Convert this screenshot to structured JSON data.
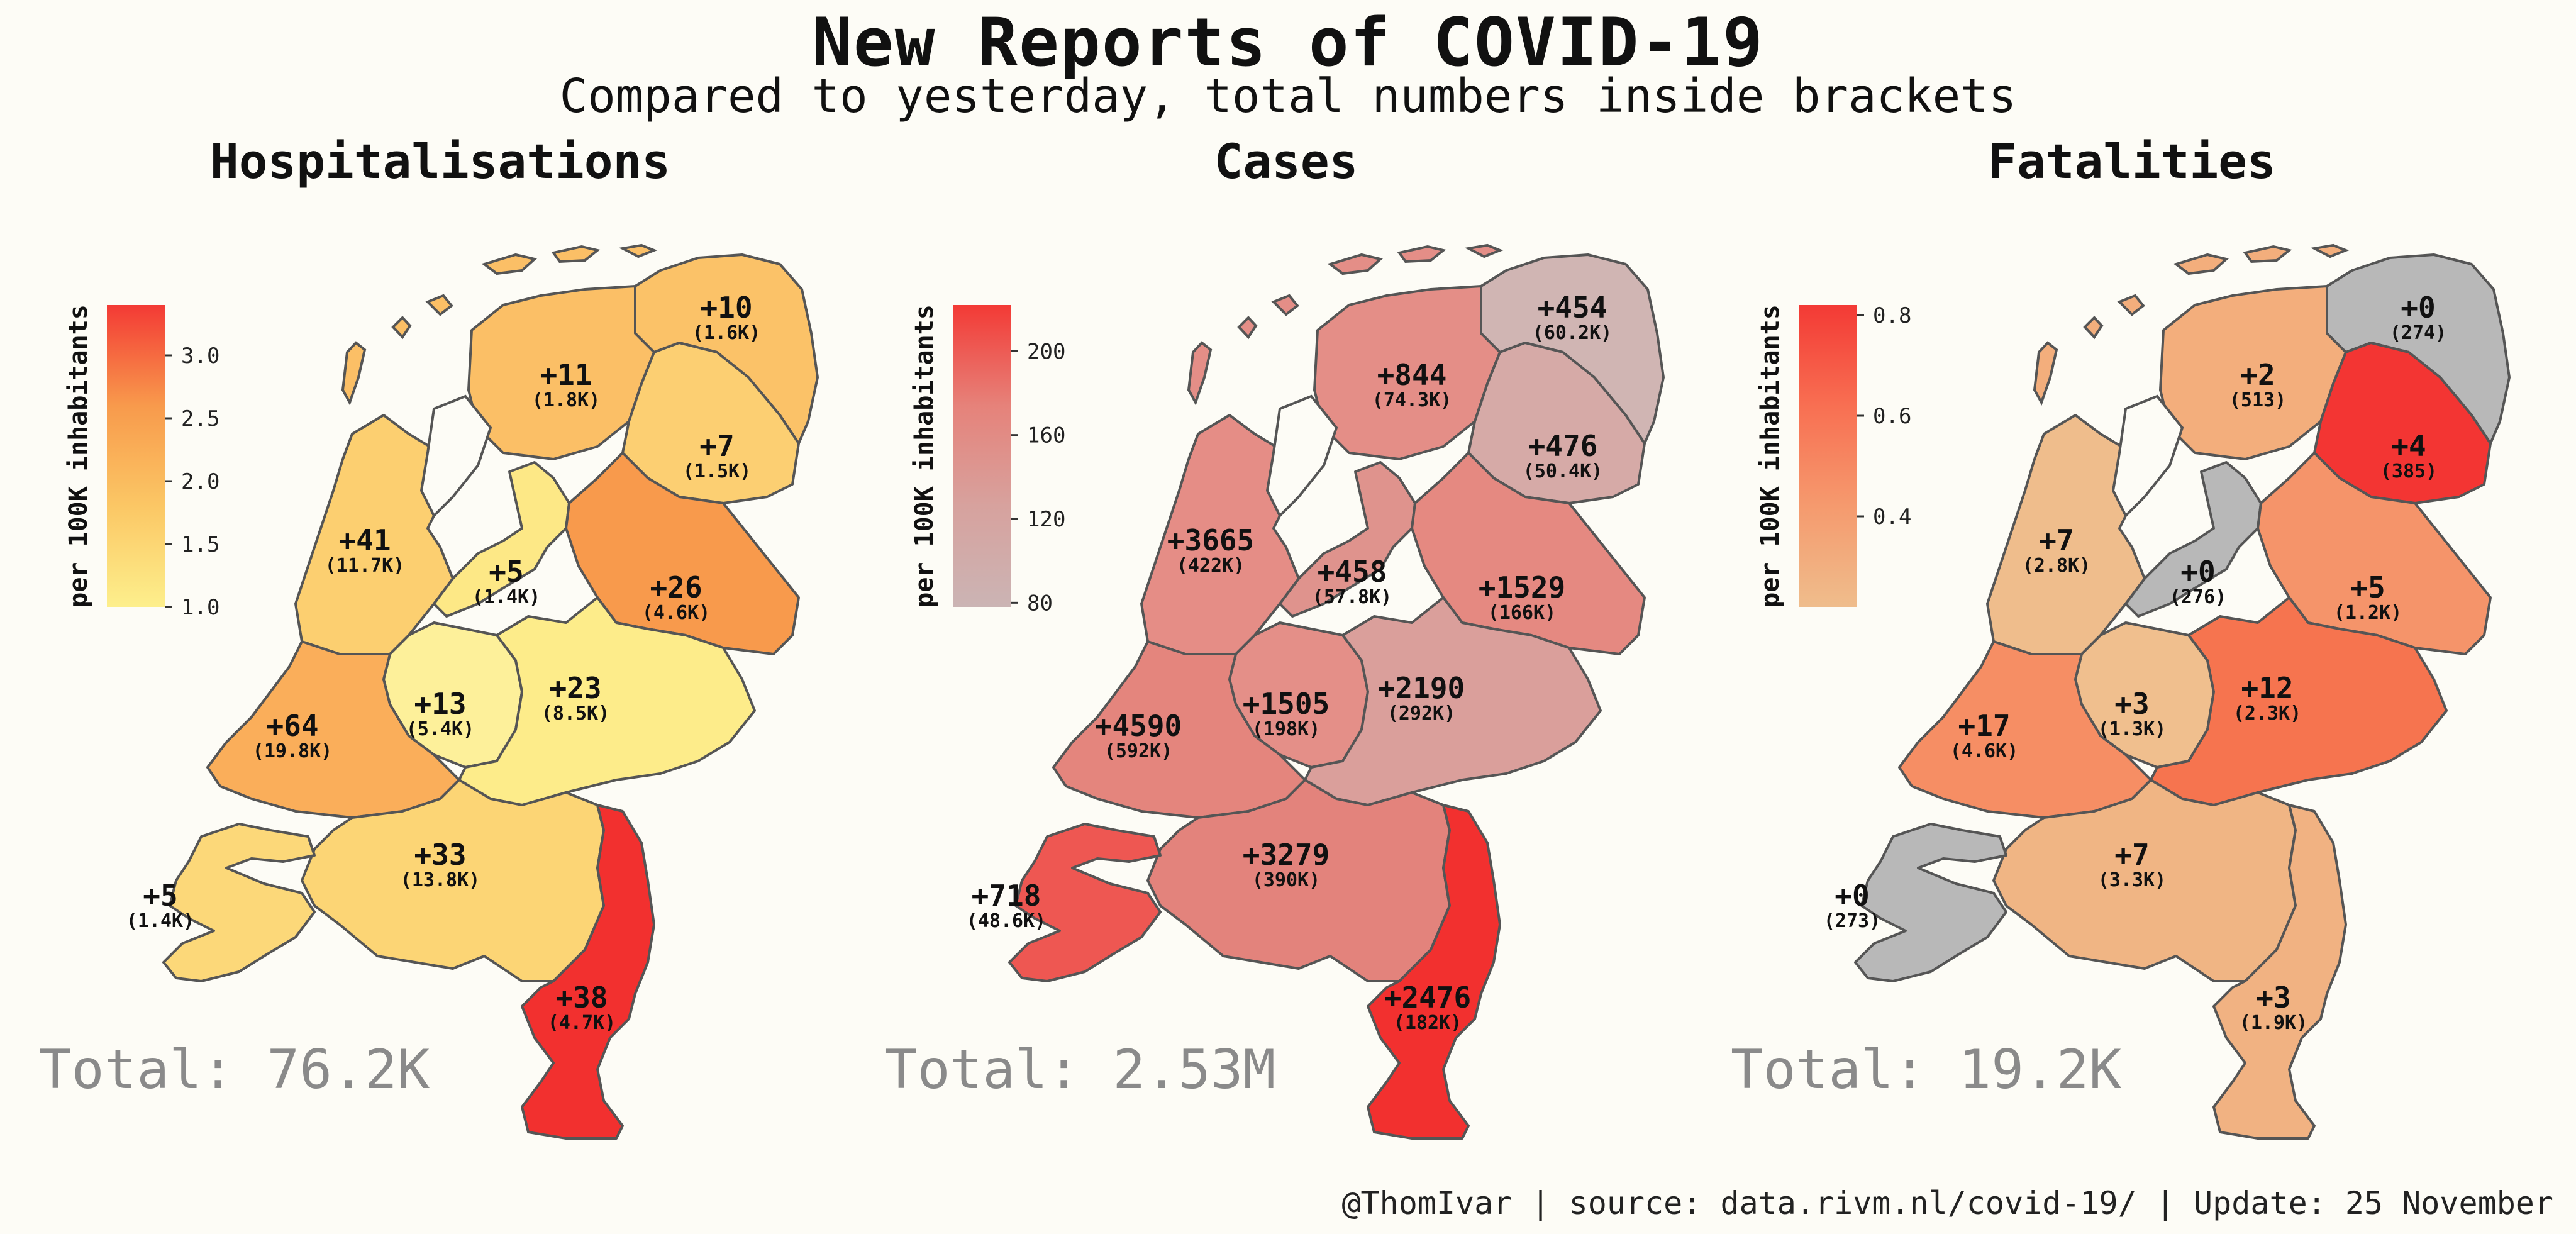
{
  "title": "New Reports of COVID-19",
  "subtitle": "Compared to yesterday, total numbers inside brackets",
  "footer": "@ThomIvar | source: data.rivm.nl/covid-19/ | Update: 25 November",
  "legend_label": "per 100K inhabitants",
  "colors": {
    "background": "#fdfcf6",
    "border": "#555555",
    "total_text": "#8a8a8a",
    "no_data": "#b8b8b8",
    "water": "#fdfcf6"
  },
  "panels": [
    {
      "title": "Hospitalisations",
      "total": "Total: 76.2K",
      "legend_ticks": [
        "3.0",
        "2.5",
        "2.0",
        "1.5",
        "1.0"
      ],
      "legend_range": [
        1.0,
        3.4
      ],
      "legend_tick_values": [
        3.0,
        2.5,
        2.0,
        1.5,
        1.0
      ],
      "legend_gradient": [
        "#fdef8c",
        "#fbc765",
        "#f89a4c",
        "#f33a35"
      ],
      "provinces": {
        "groningen": {
          "new": "+10",
          "total": "(1.6K)",
          "fill": "#fbc268"
        },
        "friesland": {
          "new": "+11",
          "total": "(1.8K)",
          "fill": "#fbbf66"
        },
        "drenthe": {
          "new": "+7",
          "total": "(1.5K)",
          "fill": "#fccf72"
        },
        "noord-holland": {
          "new": "+41",
          "total": "(11.7K)",
          "fill": "#fccf70"
        },
        "flevoland": {
          "new": "+5",
          "total": "(1.4K)",
          "fill": "#fde886"
        },
        "overijssel": {
          "new": "+26",
          "total": "(4.6K)",
          "fill": "#f89a4c"
        },
        "utrecht": {
          "new": "+13",
          "total": "(5.4K)",
          "fill": "#fdf09a"
        },
        "gelderland": {
          "new": "+23",
          "total": "(8.5K)",
          "fill": "#fdec8a"
        },
        "zuid-holland": {
          "new": "+64",
          "total": "(19.8K)",
          "fill": "#faae5a"
        },
        "noord-brabant": {
          "new": "+33",
          "total": "(13.8K)",
          "fill": "#fcd575"
        },
        "zeeland": {
          "new": "+5",
          "total": "(1.4K)",
          "fill": "#fcd879"
        },
        "limburg": {
          "new": "+38",
          "total": "(4.7K)",
          "fill": "#f2302f"
        }
      }
    },
    {
      "title": "Cases",
      "total": "Total: 2.53M",
      "legend_ticks": [
        "200",
        "160",
        "120",
        "80"
      ],
      "legend_range": [
        78,
        222
      ],
      "legend_tick_values": [
        200,
        160,
        120,
        80
      ],
      "legend_gradient": [
        "#cbb4b4",
        "#d7a29e",
        "#e6827a",
        "#f33a35"
      ],
      "provinces": {
        "groningen": {
          "new": "+454",
          "total": "(60.2K)",
          "fill": "#d0b5b3"
        },
        "friesland": {
          "new": "+844",
          "total": "(74.3K)",
          "fill": "#e48e87"
        },
        "drenthe": {
          "new": "+476",
          "total": "(50.4K)",
          "fill": "#d6aaa7"
        },
        "noord-holland": {
          "new": "+3665",
          "total": "(422K)",
          "fill": "#e58d86"
        },
        "flevoland": {
          "new": "+458",
          "total": "(57.8K)",
          "fill": "#df938d"
        },
        "overijssel": {
          "new": "+1529",
          "total": "(166K)",
          "fill": "#e58981"
        },
        "utrecht": {
          "new": "+1505",
          "total": "(198K)",
          "fill": "#e48f88"
        },
        "gelderland": {
          "new": "+2190",
          "total": "(292K)",
          "fill": "#da9f9b"
        },
        "zuid-holland": {
          "new": "+4590",
          "total": "(592K)",
          "fill": "#e4857d"
        },
        "noord-brabant": {
          "new": "+3279",
          "total": "(390K)",
          "fill": "#e3837c"
        },
        "zeeland": {
          "new": "+718",
          "total": "(48.6K)",
          "fill": "#ee5752"
        },
        "limburg": {
          "new": "+2476",
          "total": "(182K)",
          "fill": "#f2302f"
        }
      }
    },
    {
      "title": "Fatalities",
      "total": "Total: 19.2K",
      "legend_ticks": [
        "0.8",
        "0.6",
        "0.4"
      ],
      "legend_range": [
        0.22,
        0.82
      ],
      "legend_tick_values": [
        0.8,
        0.6,
        0.4
      ],
      "legend_gradient": [
        "#efbd8c",
        "#f59a6e",
        "#f86f52",
        "#f33a35"
      ],
      "provinces": {
        "groningen": {
          "new": "+0",
          "total": "(274)",
          "fill": "#b8b8b8"
        },
        "friesland": {
          "new": "+2",
          "total": "(513)",
          "fill": "#f3ae7c"
        },
        "drenthe": {
          "new": "+4",
          "total": "(385)",
          "fill": "#f33533"
        },
        "noord-holland": {
          "new": "+7",
          "total": "(2.8K)",
          "fill": "#efbd8c"
        },
        "flevoland": {
          "new": "+0",
          "total": "(276)",
          "fill": "#b8b8b8"
        },
        "overijssel": {
          "new": "+5",
          "total": "(1.2K)",
          "fill": "#f5946a"
        },
        "utrecht": {
          "new": "+3",
          "total": "(1.3K)",
          "fill": "#f0bf8e"
        },
        "gelderland": {
          "new": "+12",
          "total": "(2.3K)",
          "fill": "#f6744f"
        },
        "zuid-holland": {
          "new": "+17",
          "total": "(4.6K)",
          "fill": "#f68e64"
        },
        "noord-brabant": {
          "new": "+7",
          "total": "(3.3K)",
          "fill": "#f0b584"
        },
        "zeeland": {
          "new": "+0",
          "total": "(273)",
          "fill": "#b8b8b8"
        },
        "limburg": {
          "new": "+3",
          "total": "(1.9K)",
          "fill": "#f1b282"
        }
      }
    }
  ]
}
